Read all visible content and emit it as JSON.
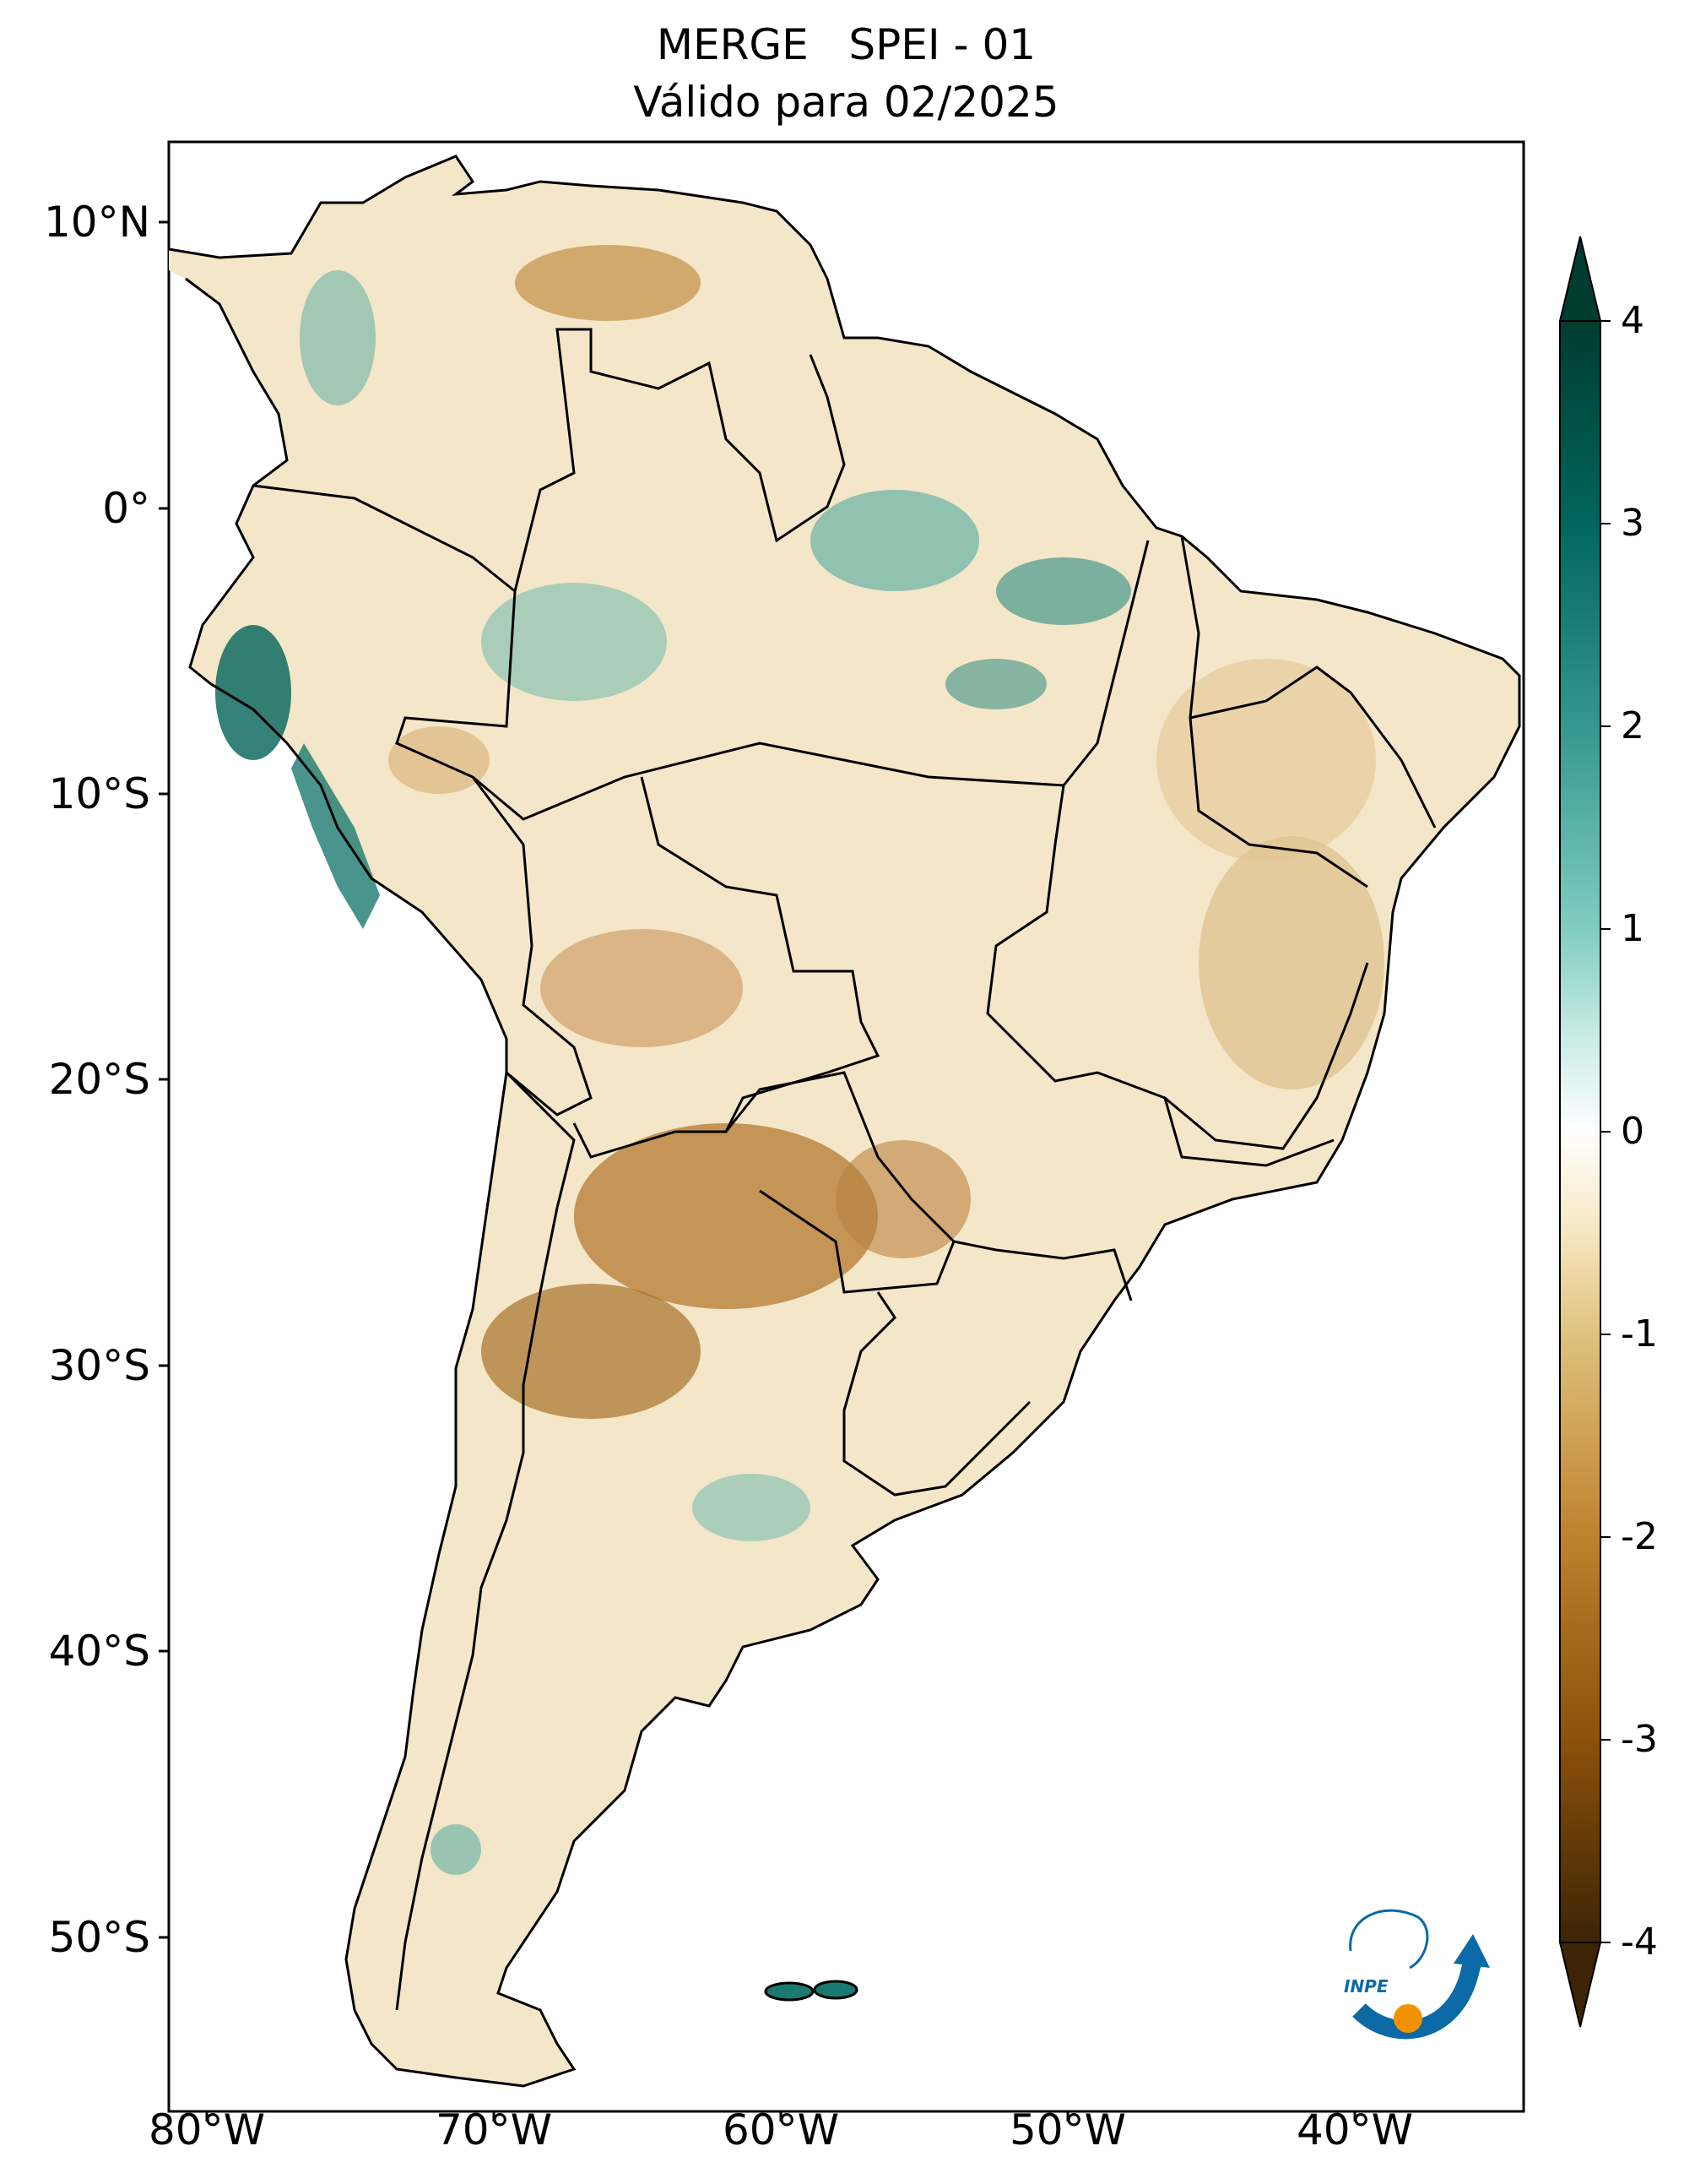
{
  "title": {
    "line1": "MERGE   SPEI - 01",
    "line2": "Válido para 02/2025"
  },
  "axes": {
    "lat_ticks": [
      "10°N",
      "0°",
      "10°S",
      "20°S",
      "30°S",
      "40°S",
      "50°S"
    ],
    "lon_ticks": [
      "80°W",
      "70°W",
      "60°W",
      "50°W",
      "40°W"
    ]
  },
  "colorbar": {
    "ticks": [
      "4",
      "3",
      "2",
      "1",
      "0",
      "-1",
      "-2",
      "-3",
      "-4"
    ],
    "min": -4,
    "max": 4,
    "extend": "both",
    "colors": [
      "#3d2405",
      "#8c510a",
      "#bf812d",
      "#dfc27d",
      "#f6e8c3",
      "#ffffff",
      "#c7eae5",
      "#80cdc1",
      "#35978f",
      "#01665e",
      "#003c30"
    ]
  },
  "logo": {
    "text": "INPE"
  }
}
